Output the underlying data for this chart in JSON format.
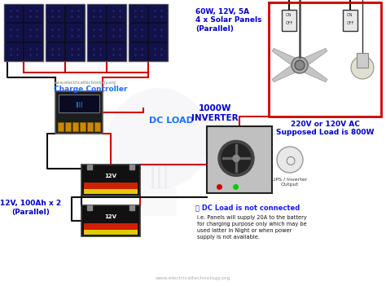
{
  "bg_color": "#ffffff",
  "solar_panel_label": "60W, 12V, 5A\n4 x Solar Panels\n(Parallel)",
  "battery_label": "12V, 100Ah x 2\n(Parallel)",
  "charge_controller_label": "Charge Controller",
  "dc_load_label": "DC LOAD",
  "inverter_label": "1000W\nINVERTER",
  "ac_load_label": "220V or 120V AC\nSupposed Load is 800W",
  "ups_label": "UPS / Inverter\nOutput",
  "note_title": "ⓘ DC Load is not connected",
  "note_body": "i.e. Panels will supply 20A to the battery\nfor charging purpose only which may be\nused latter in Night or when power\nsupply is not available.",
  "website": "www.electricaltechnology.org",
  "panel_color": "#1a1a2e",
  "panel_border": "#444455",
  "wire_red": "#cc0000",
  "wire_black": "#111111",
  "text_blue": "#0000cc",
  "label_blue": "#1a6eff",
  "note_blue": "#1a1aff",
  "watermark_color": "#aaaaaa",
  "bg_diagram": "#ffffff"
}
